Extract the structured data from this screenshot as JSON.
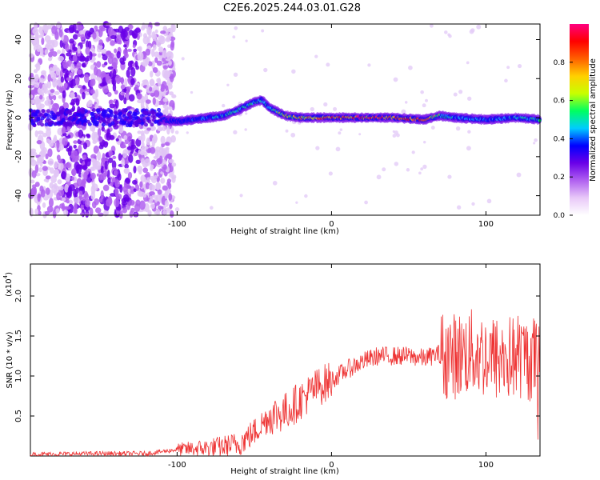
{
  "title": "C2E6.2025.244.03.01.G28",
  "chart_data": [
    {
      "type": "heatmap",
      "name": "spectrogram",
      "xlabel": "Height of straight line (km)",
      "ylabel": "Frequency (Hz)",
      "xlim": [
        -195,
        135
      ],
      "ylim": [
        -50,
        48
      ],
      "xticks": [
        -100,
        0,
        100
      ],
      "yticks": [
        -40,
        -20,
        0,
        20,
        40
      ],
      "colorbar": {
        "label": "Normalized spectral amplitude",
        "range": [
          0,
          1
        ],
        "ticks": [
          "0.0",
          "0.2",
          "0.4",
          "0.6",
          "0.8"
        ],
        "colors": [
          "#ffffff",
          "#e8c8f8",
          "#b060f0",
          "#6a00e8",
          "#0000ff",
          "#00ccff",
          "#00ff60",
          "#c8ff00",
          "#ffd000",
          "#ff6000",
          "#ff0000",
          "#ff0080"
        ]
      },
      "ridge": {
        "km": [
          -110,
          -100,
          -90,
          -80,
          -70,
          -60,
          -50,
          -45,
          -40,
          -30,
          -20,
          -10,
          0,
          20,
          40,
          60,
          70,
          80,
          100,
          120,
          135
        ],
        "hz": [
          -1,
          -2,
          -1,
          0,
          1,
          4,
          8,
          9,
          5,
          1,
          0,
          0,
          0,
          0,
          0,
          -1,
          1,
          0,
          -1,
          0,
          -1
        ],
        "amplitude": [
          0.3,
          0.35,
          0.4,
          0.45,
          0.5,
          0.55,
          0.5,
          0.5,
          0.55,
          0.65,
          0.75,
          0.8,
          0.85,
          0.9,
          0.9,
          0.85,
          0.6,
          0.45,
          0.45,
          0.5,
          0.5
        ]
      },
      "noise_region_km": [
        -195,
        -110
      ]
    },
    {
      "type": "line",
      "name": "snr",
      "xlabel": "Height of straight line (km)",
      "ylabel": "SNR (10 * v/v)",
      "yunit_label": "(x10",
      "yunit_exp": "4",
      "xlim": [
        -195,
        135
      ],
      "ylim": [
        0,
        2.4
      ],
      "xticks": [
        -100,
        0,
        100
      ],
      "yticks": [
        0.5,
        1.0,
        1.5,
        2.0
      ],
      "ytick_labels": [
        "0.5",
        "1.0",
        "1.5",
        "2.0"
      ],
      "color": "#ee3333",
      "series": [
        {
          "name": "SNR",
          "x": [
            -195,
            -150,
            -120,
            -100,
            -80,
            -70,
            -60,
            -50,
            -40,
            -30,
            -20,
            -10,
            0,
            10,
            20,
            30,
            40,
            50,
            60,
            70,
            80,
            90,
            100,
            110,
            120,
            135
          ],
          "y": [
            0.02,
            0.03,
            0.03,
            0.08,
            0.1,
            0.12,
            0.15,
            0.3,
            0.5,
            0.55,
            0.7,
            0.85,
            0.95,
            1.08,
            1.18,
            1.25,
            1.25,
            1.25,
            1.22,
            1.28,
            1.25,
            1.3,
            1.25,
            1.2,
            1.25,
            1.2
          ]
        }
      ]
    }
  ]
}
